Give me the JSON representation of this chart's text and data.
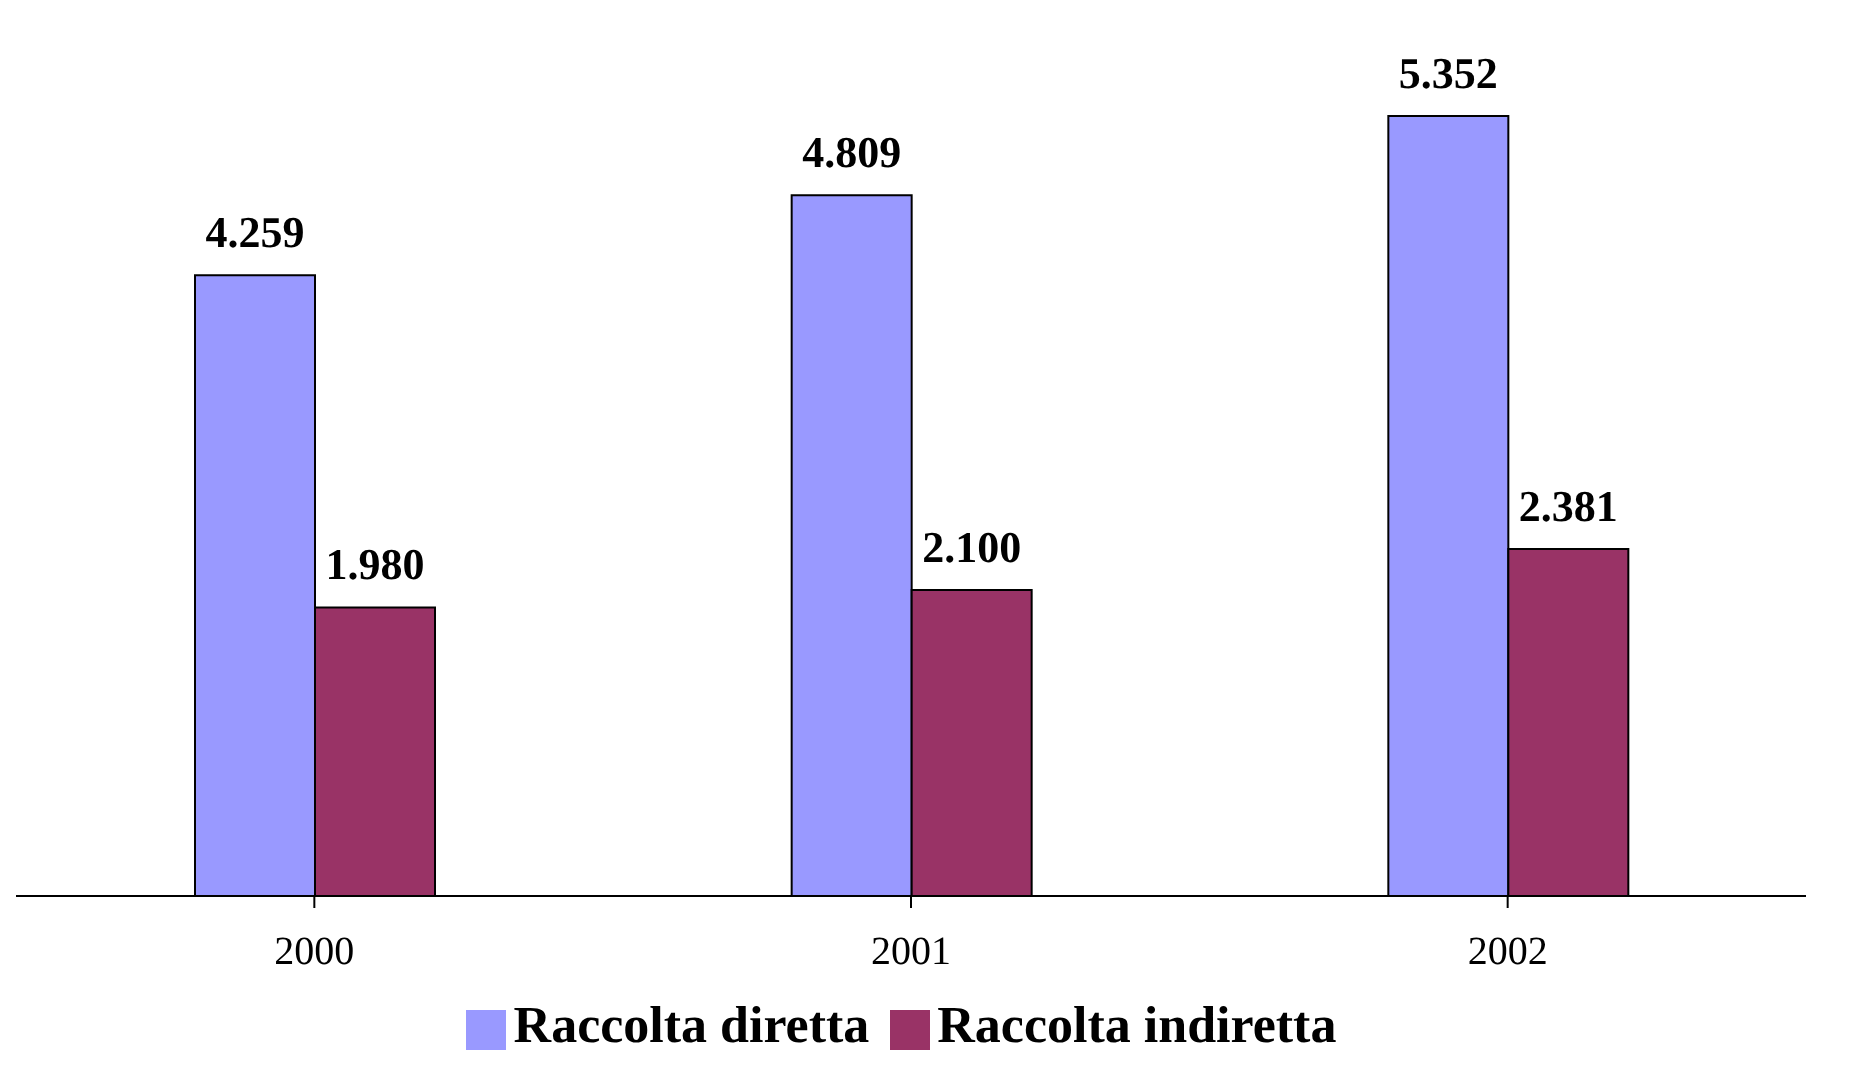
{
  "chart_data": {
    "type": "bar",
    "categories": [
      "2000",
      "2001",
      "2002"
    ],
    "series": [
      {
        "name": "Raccolta diretta",
        "color": "#9999ff",
        "values": [
          4.259,
          4.809,
          5.352
        ],
        "value_labels": [
          "4.259",
          "4.809",
          "5.352"
        ]
      },
      {
        "name": "Raccolta indiretta",
        "color": "#993366",
        "values": [
          1.98,
          2.1,
          2.381
        ],
        "value_labels": [
          "1.980",
          "2.100",
          "2.381"
        ]
      }
    ],
    "legend": "bottom",
    "grid": false
  }
}
